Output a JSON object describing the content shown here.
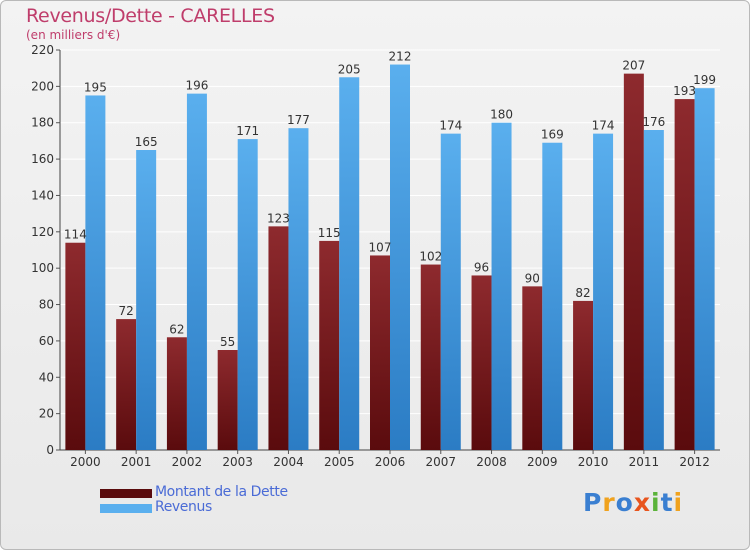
{
  "title": "Revenus/Dette - CARELLES",
  "subtitle": "(en milliers d'€)",
  "logo": {
    "text": "Proxiti",
    "letters": [
      {
        "ch": "P",
        "color": "#3a7fd1"
      },
      {
        "ch": "r",
        "color": "#f0a21e"
      },
      {
        "ch": "o",
        "color": "#3a7fd1"
      },
      {
        "ch": "x",
        "color": "#e8541d"
      },
      {
        "ch": "i",
        "color": "#5bb33a"
      },
      {
        "ch": "t",
        "color": "#3a7fd1"
      },
      {
        "ch": "i",
        "color": "#f0a21e"
      }
    ]
  },
  "colors": {
    "dette_top": "#8e2a2e",
    "dette_bottom": "#5a0b0d",
    "revenus_top": "#5aafee",
    "revenus_bottom": "#2b7cc4",
    "grid": "#ffffff",
    "axis_text": "#333333"
  },
  "chart_data": {
    "type": "bar",
    "categories": [
      "2000",
      "2001",
      "2002",
      "2003",
      "2004",
      "2005",
      "2006",
      "2007",
      "2008",
      "2009",
      "2010",
      "2011",
      "2012"
    ],
    "series": [
      {
        "name": "Montant de la Dette",
        "values": [
          114,
          72,
          62,
          55,
          123,
          115,
          107,
          102,
          96,
          90,
          82,
          207,
          193
        ]
      },
      {
        "name": "Revenus",
        "values": [
          195,
          165,
          196,
          171,
          177,
          205,
          212,
          174,
          180,
          169,
          174,
          176,
          199
        ]
      }
    ],
    "yticks": [
      0,
      20,
      40,
      60,
      80,
      100,
      120,
      140,
      160,
      180,
      200,
      220
    ],
    "ylim": [
      0,
      220
    ],
    "grid": true,
    "legend_position": "bottom-left",
    "xlabel": "",
    "ylabel": ""
  }
}
